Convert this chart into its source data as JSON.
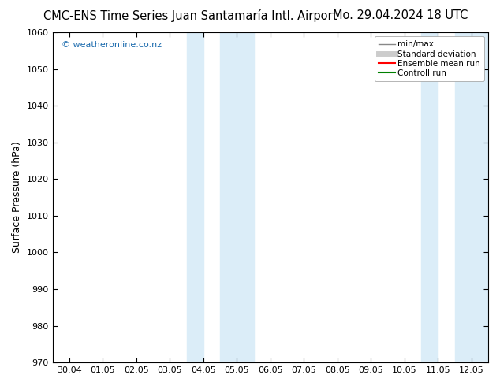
{
  "title_left": "CMC-ENS Time Series Juan Santamaría Intl. Airport",
  "title_right": "Mo. 29.04.2024 18 UTC",
  "ylabel": "Surface Pressure (hPa)",
  "ylim": [
    970,
    1060
  ],
  "yticks": [
    970,
    980,
    990,
    1000,
    1010,
    1020,
    1030,
    1040,
    1050,
    1060
  ],
  "xtick_labels": [
    "30.04",
    "01.05",
    "02.05",
    "03.05",
    "04.05",
    "05.05",
    "06.05",
    "07.05",
    "08.05",
    "09.05",
    "10.05",
    "11.05",
    "12.05"
  ],
  "xtick_positions": [
    0,
    1,
    2,
    3,
    4,
    5,
    6,
    7,
    8,
    9,
    10,
    11,
    12
  ],
  "shaded_bands": [
    {
      "xmin": 3.5,
      "xmax": 4.0
    },
    {
      "xmin": 4.5,
      "xmax": 5.5
    },
    {
      "xmin": 10.5,
      "xmax": 11.0
    },
    {
      "xmin": 11.5,
      "xmax": 12.5
    }
  ],
  "shade_color": "#dbedf8",
  "background_color": "#ffffff",
  "plot_bg_color": "#ffffff",
  "watermark": "© weatheronline.co.nz",
  "watermark_color": "#1a6aad",
  "legend_items": [
    {
      "label": "min/max",
      "color": "#888888",
      "lw": 1.0,
      "ls": "-"
    },
    {
      "label": "Standard deviation",
      "color": "#cccccc",
      "lw": 5,
      "ls": "-"
    },
    {
      "label": "Ensemble mean run",
      "color": "#ff0000",
      "lw": 1.5,
      "ls": "-"
    },
    {
      "label": "Controll run",
      "color": "#008000",
      "lw": 1.5,
      "ls": "-"
    }
  ],
  "title_fontsize": 10.5,
  "tick_fontsize": 8,
  "ylabel_fontsize": 9,
  "legend_fontsize": 7.5
}
